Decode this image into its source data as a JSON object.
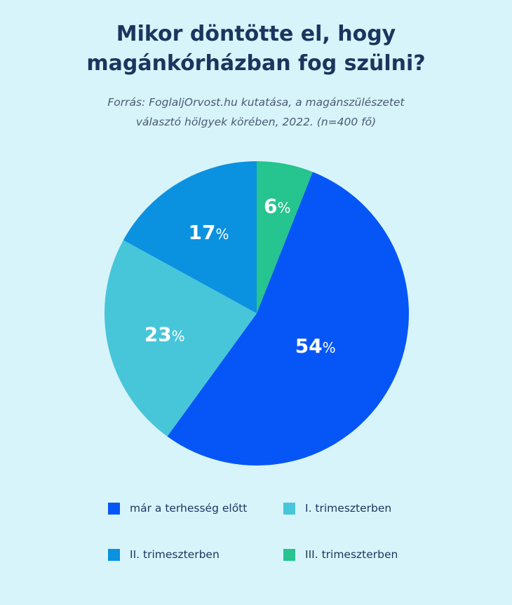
{
  "header": {
    "title_line1": "Mikor döntötte el, hogy",
    "title_line2": "magánkórházban fog szülni?",
    "subtitle_line1": "Forrás: FoglaljOrvost.hu kutatása, a magánszülészetet",
    "subtitle_line2": "választó hölgyek körében, 2022. (n=400 fő)"
  },
  "chart_data": {
    "type": "pie",
    "title": "Mikor döntötte el, hogy magánkórházban fog szülni?",
    "subtitle": "Forrás: FoglaljOrvost.hu kutatása, a magánszülészetet választó hölgyek körében, 2022. (n=400 fő)",
    "unit": "%",
    "legend_position": "bottom",
    "slices": [
      {
        "label": "III. trimeszterben",
        "value": 6,
        "value_text": "6",
        "color": "#26c48e"
      },
      {
        "label": "már a terhesség előtt",
        "value": 54,
        "value_text": "54",
        "color": "#0656f7"
      },
      {
        "label": "I. trimeszterben",
        "value": 23,
        "value_text": "23",
        "color": "#47c6da"
      },
      {
        "label": "II. trimeszterben",
        "value": 17,
        "value_text": "17",
        "color": "#0a91e0"
      }
    ]
  },
  "legend": {
    "items": [
      {
        "label": "már a terhesség előtt",
        "color": "#0656f7"
      },
      {
        "label": "I. trimeszterben",
        "color": "#47c6da"
      },
      {
        "label": "II. trimeszterben",
        "color": "#0a91e0"
      },
      {
        "label": "III. trimeszterben",
        "color": "#26c48e"
      }
    ]
  }
}
